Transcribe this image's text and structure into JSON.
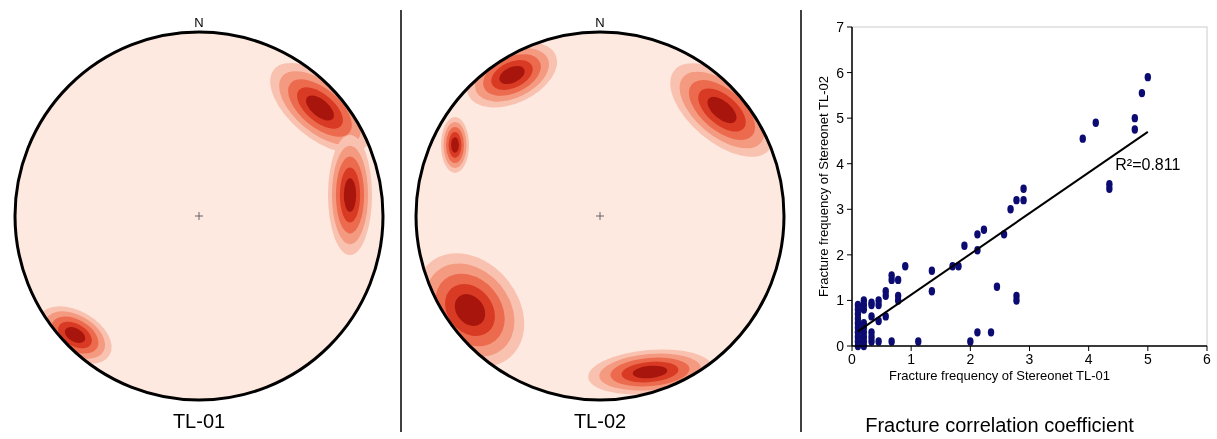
{
  "chart_data": [
    {
      "type": "other",
      "title": "TL-01",
      "annotations": [
        "N"
      ]
    },
    {
      "type": "other",
      "title": "TL-02",
      "annotations": [
        "N"
      ]
    },
    {
      "type": "scatter",
      "title": "Fracture correlation coefficient",
      "xlabel": "Fracture frequency of Stereonet TL-01",
      "ylabel": "Fracture frequency of Stereonet TL-02",
      "xlim": [
        0,
        6
      ],
      "ylim": [
        0,
        7
      ],
      "xticks": [
        0,
        1,
        2,
        3,
        4,
        5,
        6
      ],
      "yticks": [
        0,
        1,
        2,
        3,
        4,
        5,
        6,
        7
      ],
      "grid": false,
      "annotations": [
        "R²=0.811"
      ],
      "series": [
        {
          "type": "scatter",
          "marker": "circle",
          "color": "#0b0b72",
          "x": [
            0.1,
            0.1,
            0.1,
            0.1,
            0.1,
            0.1,
            0.1,
            0.1,
            0.1,
            0.1,
            0.2,
            0.2,
            0.2,
            0.2,
            0.2,
            0.2,
            0.2,
            0.2,
            0.2,
            0.33,
            0.33,
            0.33,
            0.33,
            0.33,
            0.33,
            0.45,
            0.45,
            0.45,
            0.45,
            0.57,
            0.57,
            0.57,
            0.67,
            0.67,
            0.67,
            0.78,
            0.78,
            0.78,
            0.9,
            1.12,
            1.35,
            1.35,
            1.7,
            1.8,
            1.9,
            2.0,
            2.12,
            2.12,
            2.12,
            2.23,
            2.35,
            2.45,
            2.57,
            2.68,
            2.78,
            2.78,
            2.78,
            2.9,
            2.9,
            3.9,
            4.12,
            4.35,
            4.35,
            4.78,
            4.78,
            4.9,
            5.0
          ],
          "values": [
            0.9,
            0.8,
            0.7,
            0.6,
            0.5,
            0.4,
            0.3,
            0.2,
            0.1,
            0,
            1.0,
            0.9,
            0.8,
            0.5,
            0.4,
            0.3,
            0.2,
            0.1,
            0,
            0.95,
            0.9,
            0.65,
            0.3,
            0.2,
            0.1,
            1.0,
            0.9,
            0.55,
            0.1,
            1.2,
            1.1,
            0.65,
            1.55,
            1.45,
            0.1,
            1.45,
            1.1,
            1.0,
            1.75,
            0.1,
            1.65,
            1.2,
            1.75,
            1.75,
            2.2,
            0.1,
            2.45,
            2.1,
            0.3,
            2.55,
            0.3,
            1.3,
            2.45,
            3.0,
            3.2,
            1.1,
            1.0,
            3.45,
            3.2,
            4.55,
            4.9,
            3.55,
            3.45,
            5.0,
            4.75,
            5.55,
            5.9
          ]
        },
        {
          "type": "line",
          "marker": "none",
          "color": "#000000",
          "x": [
            0.1,
            5
          ],
          "values": [
            0.32,
            4.7
          ]
        }
      ]
    }
  ]
}
